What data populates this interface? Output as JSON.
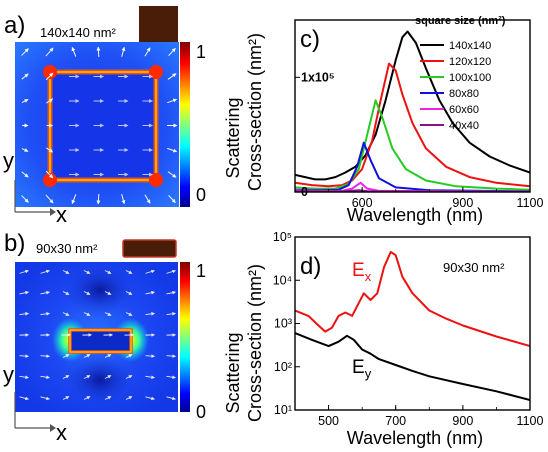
{
  "panels": {
    "a": {
      "label": "a)",
      "size_label": "140x140 nm²",
      "colorbar": {
        "max": "1",
        "min": "0"
      }
    },
    "b": {
      "label": "b)",
      "size_label": "90x30 nm²",
      "colorbar": {
        "max": "1",
        "min": "0"
      }
    },
    "c": {
      "label": "c)"
    },
    "d": {
      "label": "d)",
      "annotation": "90x30 nm²"
    }
  },
  "axes_labels": {
    "x": "x",
    "y": "y"
  },
  "chart_data": [
    {
      "panel": "c",
      "type": "line",
      "xlabel": "Wavelength (nm)",
      "ylabel_line1": "Scattering",
      "ylabel_line2": "Cross-section (nm²)",
      "xlim": [
        400,
        1100
      ],
      "ylim": [
        0,
        150000
      ],
      "xticks": [
        "600",
        "900",
        "1100"
      ],
      "xtick_values": [
        600,
        900,
        1100
      ],
      "yticks": [
        "0",
        "1x10⁵"
      ],
      "ytick_values": [
        0,
        100000
      ],
      "legend_title": "square size (nm²)",
      "legend_placement": "top-right",
      "series": [
        {
          "name": "140x140",
          "color": "#000000",
          "points": [
            [
              400,
              15000
            ],
            [
              430,
              13000
            ],
            [
              460,
              11000
            ],
            [
              490,
              11000
            ],
            [
              520,
              13000
            ],
            [
              550,
              17000
            ],
            [
              580,
              22000
            ],
            [
              610,
              32000
            ],
            [
              640,
              50000
            ],
            [
              670,
              80000
            ],
            [
              700,
              115000
            ],
            [
              720,
              135000
            ],
            [
              735,
              140000
            ],
            [
              760,
              130000
            ],
            [
              790,
              108000
            ],
            [
              830,
              80000
            ],
            [
              870,
              60000
            ],
            [
              920,
              43000
            ],
            [
              980,
              31000
            ],
            [
              1040,
              23000
            ],
            [
              1100,
              17000
            ]
          ]
        },
        {
          "name": "120x120",
          "color": "#ee1111",
          "points": [
            [
              400,
              8000
            ],
            [
              450,
              6000
            ],
            [
              500,
              5000
            ],
            [
              540,
              6000
            ],
            [
              570,
              10000
            ],
            [
              600,
              20000
            ],
            [
              630,
              45000
            ],
            [
              655,
              80000
            ],
            [
              680,
              112000
            ],
            [
              700,
              106000
            ],
            [
              720,
              85000
            ],
            [
              750,
              60000
            ],
            [
              790,
              38000
            ],
            [
              850,
              22000
            ],
            [
              920,
              13000
            ],
            [
              1000,
              8000
            ],
            [
              1100,
              5000
            ]
          ]
        },
        {
          "name": "100x100",
          "color": "#22cc22",
          "points": [
            [
              400,
              4000
            ],
            [
              460,
              3000
            ],
            [
              520,
              3000
            ],
            [
              560,
              7000
            ],
            [
              590,
              20000
            ],
            [
              615,
              50000
            ],
            [
              640,
              80000
            ],
            [
              660,
              65000
            ],
            [
              690,
              38000
            ],
            [
              730,
              20000
            ],
            [
              790,
              10000
            ],
            [
              880,
              5000
            ],
            [
              1000,
              3000
            ],
            [
              1100,
              2000
            ]
          ]
        },
        {
          "name": "80x80",
          "color": "#1111dd",
          "points": [
            [
              400,
              2000
            ],
            [
              480,
              1500
            ],
            [
              530,
              2000
            ],
            [
              560,
              6000
            ],
            [
              585,
              22000
            ],
            [
              605,
              43000
            ],
            [
              625,
              28000
            ],
            [
              650,
              12000
            ],
            [
              700,
              4000
            ],
            [
              800,
              1500
            ],
            [
              1100,
              500
            ]
          ]
        },
        {
          "name": "60x60",
          "color": "#ee22ee",
          "points": [
            [
              400,
              1500
            ],
            [
              480,
              1000
            ],
            [
              540,
              1000
            ],
            [
              570,
              3000
            ],
            [
              595,
              8000
            ],
            [
              615,
              3000
            ],
            [
              650,
              1000
            ],
            [
              1100,
              200
            ]
          ]
        },
        {
          "name": "40x40",
          "color": "#881188",
          "points": [
            [
              400,
              500
            ],
            [
              540,
              400
            ],
            [
              590,
              1500
            ],
            [
              620,
              500
            ],
            [
              1100,
              100
            ]
          ]
        }
      ]
    },
    {
      "panel": "d",
      "type": "line",
      "xlabel": "Wavelength (nm)",
      "ylabel_line1": "Scattering",
      "ylabel_line2": "Cross-section (nm²)",
      "y_scale": "log",
      "xlim": [
        400,
        1100
      ],
      "ylim": [
        10,
        100000
      ],
      "xticks": [
        "500",
        "700",
        "900",
        "1100"
      ],
      "xtick_values": [
        500,
        700,
        900,
        1100
      ],
      "yticks": [
        "10¹",
        "10²",
        "10³",
        "10⁴",
        "10⁵"
      ],
      "ytick_values": [
        10,
        100,
        1000,
        10000,
        100000
      ],
      "series": [
        {
          "name": "Ex",
          "color": "#ee1111",
          "points": [
            [
              400,
              2000
            ],
            [
              440,
              1500
            ],
            [
              470,
              900
            ],
            [
              490,
              650
            ],
            [
              510,
              800
            ],
            [
              530,
              1500
            ],
            [
              550,
              1800
            ],
            [
              570,
              1500
            ],
            [
              590,
              3000
            ],
            [
              605,
              5000
            ],
            [
              625,
              3500
            ],
            [
              645,
              5000
            ],
            [
              665,
              20000
            ],
            [
              685,
              45000
            ],
            [
              700,
              38000
            ],
            [
              720,
              12000
            ],
            [
              750,
              5000
            ],
            [
              800,
              2000
            ],
            [
              850,
              1300
            ],
            [
              900,
              900
            ],
            [
              1000,
              500
            ],
            [
              1100,
              300
            ]
          ]
        },
        {
          "name": "Ey",
          "color": "#000000",
          "points": [
            [
              400,
              600
            ],
            [
              450,
              420
            ],
            [
              500,
              300
            ],
            [
              530,
              380
            ],
            [
              555,
              520
            ],
            [
              575,
              420
            ],
            [
              600,
              250
            ],
            [
              625,
              200
            ],
            [
              650,
              150
            ],
            [
              700,
              110
            ],
            [
              750,
              80
            ],
            [
              800,
              60
            ],
            [
              900,
              40
            ],
            [
              1000,
              27
            ],
            [
              1100,
              17
            ]
          ]
        }
      ]
    }
  ]
}
